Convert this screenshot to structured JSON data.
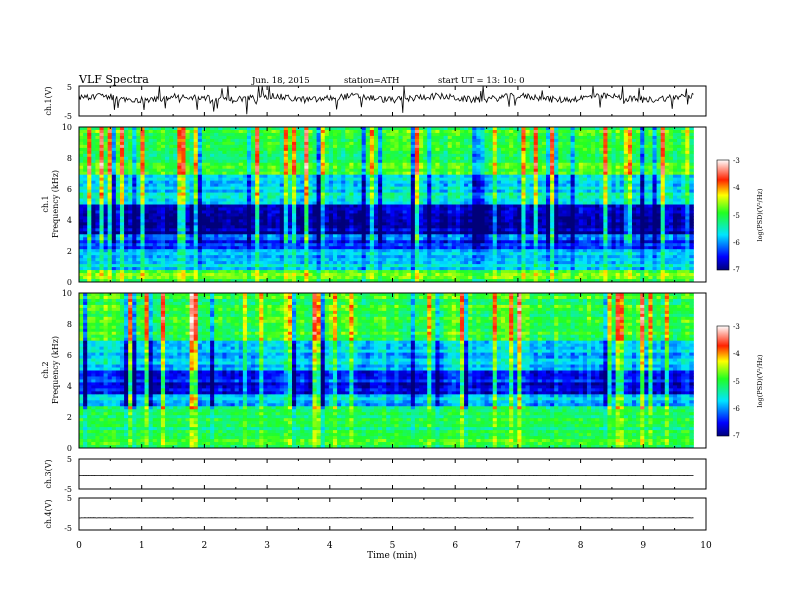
{
  "header": {
    "title": "VLF  Spectra",
    "date": "Jun. 18, 2015",
    "station": "station=ATH",
    "start": "start  UT  =   13: 10: 0"
  },
  "chart_data": [
    {
      "type": "line",
      "name": "ch1-waveform",
      "ylabel": "ch.1(V)",
      "ylim": [
        -5,
        5
      ],
      "yticks": [
        "5",
        "-5"
      ],
      "xlim": [
        0,
        10
      ],
      "data_end_min": 9.8,
      "baseline": 1.0
    },
    {
      "type": "heatmap",
      "name": "ch1-spectrogram",
      "ylabel": [
        "ch.1",
        "Frequency  (kHz)"
      ],
      "ylim": [
        0,
        10
      ],
      "yticks": [
        "0",
        "2",
        "4",
        "6",
        "8",
        "10"
      ],
      "xlim": [
        0,
        10
      ],
      "colorbar": {
        "label": "log(PSD)(V²/Hz)",
        "range": [
          -7,
          -3
        ],
        "ticks": [
          "-3",
          "-4",
          "-5",
          "-6",
          "-7"
        ]
      },
      "bands": [
        {
          "fmin": 0.0,
          "fmax": 0.8,
          "level": -4.8
        },
        {
          "fmin": 0.8,
          "fmax": 2.2,
          "level": -5.7
        },
        {
          "fmin": 2.2,
          "fmax": 3.0,
          "level": -6.3
        },
        {
          "fmin": 3.0,
          "fmax": 5.0,
          "level": -6.8
        },
        {
          "fmin": 5.0,
          "fmax": 7.0,
          "level": -5.6
        },
        {
          "fmin": 7.0,
          "fmax": 10.0,
          "level": -5.0
        }
      ]
    },
    {
      "type": "heatmap",
      "name": "ch2-spectrogram",
      "ylabel": [
        "ch.2",
        "Frequency  (kHz)"
      ],
      "ylim": [
        0,
        10
      ],
      "yticks": [
        "0",
        "2",
        "4",
        "6",
        "8",
        "10"
      ],
      "xlim": [
        0,
        10
      ],
      "colorbar": {
        "label": "log(PSD)(V²/Hz)",
        "range": [
          -7,
          -3
        ],
        "ticks": [
          "-3",
          "-4",
          "-5",
          "-6",
          "-7"
        ]
      },
      "bands": [
        {
          "fmin": 0.0,
          "fmax": 1.0,
          "level": -5.0
        },
        {
          "fmin": 1.0,
          "fmax": 2.6,
          "level": -5.2
        },
        {
          "fmin": 2.6,
          "fmax": 3.4,
          "level": -5.8
        },
        {
          "fmin": 3.4,
          "fmax": 5.0,
          "level": -6.5
        },
        {
          "fmin": 5.0,
          "fmax": 7.0,
          "level": -5.7
        },
        {
          "fmin": 7.0,
          "fmax": 10.0,
          "level": -5.0
        }
      ]
    },
    {
      "type": "line",
      "name": "ch3-waveform",
      "ylabel": "ch.3(V)",
      "ylim": [
        -5,
        5
      ],
      "yticks": [
        "5",
        "-5"
      ],
      "xlim": [
        0,
        10
      ],
      "baseline": -0.5
    },
    {
      "type": "line",
      "name": "ch4-waveform",
      "ylabel": "ch.4(V)",
      "ylim": [
        -5,
        5
      ],
      "yticks": [
        "5",
        "-5"
      ],
      "xlim": [
        0,
        10
      ],
      "baseline": -1.2
    }
  ],
  "xaxis": {
    "label": "Time  (min)",
    "ticks": [
      "0",
      "1",
      "2",
      "3",
      "4",
      "5",
      "6",
      "7",
      "8",
      "9",
      "10"
    ]
  }
}
